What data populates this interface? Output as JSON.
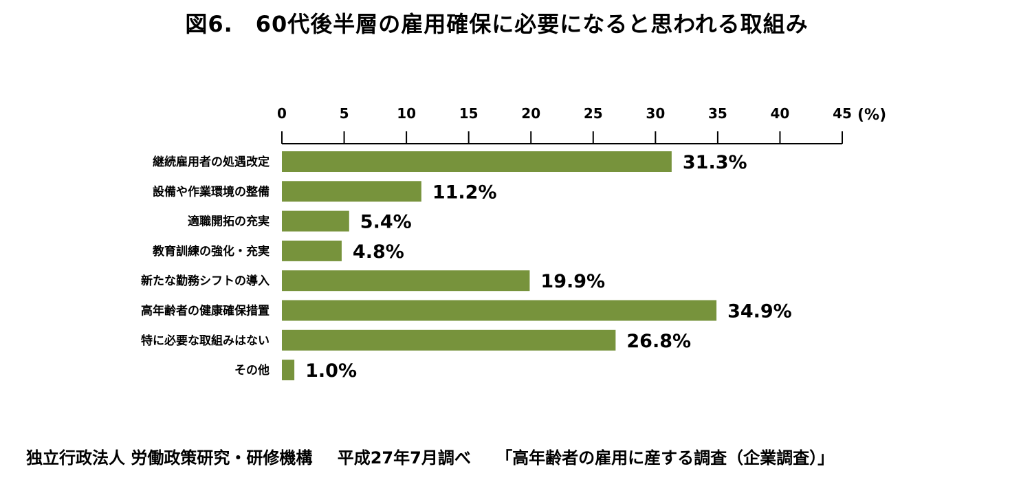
{
  "title": "図6.　60代後半層の雇用確保に必要になると思われる取組み",
  "footer": {
    "org": "独立行政法人 労働政策研究・研修機構",
    "date": "平成27年7月調べ",
    "survey": "「高年齢者の雇用に産する調査（企業調査）」"
  },
  "chart_data": {
    "type": "bar",
    "orientation": "horizontal",
    "unit_label": "(%)",
    "xlim": [
      0,
      45
    ],
    "ticks": [
      0,
      5,
      10,
      15,
      20,
      25,
      30,
      35,
      40,
      45
    ],
    "tick_labels": [
      "0",
      "5",
      "10",
      "15",
      "20",
      "25",
      "30",
      "35",
      "40",
      "45"
    ],
    "axis_position": "top",
    "bar_color": "#77933c",
    "categories": [
      "継続雇用者の処遇改定",
      "設備や作業環境の整備",
      "適職開拓の充実",
      "教育訓練の強化・充実",
      "新たな勤務シフトの導入",
      "高年齢者の健康確保措置",
      "特に必要な取組みはない",
      "その他"
    ],
    "values": [
      31.3,
      11.2,
      5.4,
      4.8,
      19.9,
      34.9,
      26.8,
      1.0
    ],
    "data_labels": [
      "31.3%",
      "11.2%",
      "5.4%",
      "4.8%",
      "19.9%",
      "34.9%",
      "26.8%",
      "1.0%"
    ]
  }
}
